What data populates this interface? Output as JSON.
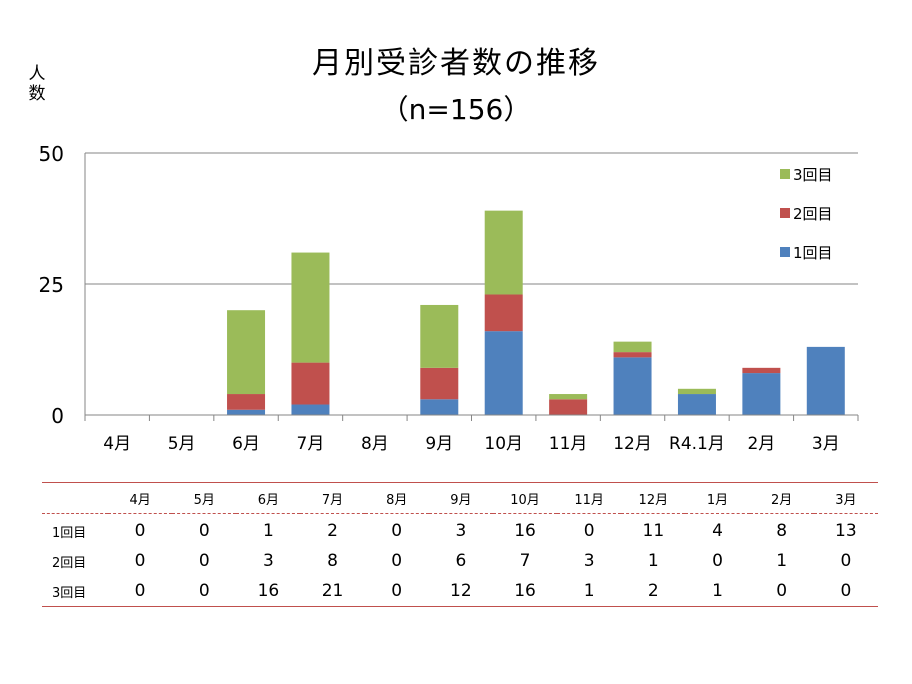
{
  "chart_data": {
    "type": "bar",
    "stacked": true,
    "title": "月別受診者数の推移",
    "subtitle": "（n=156）",
    "ylabel": "人数",
    "xlabel": "",
    "ylim": [
      0,
      50
    ],
    "yticks": [
      0,
      25,
      50
    ],
    "grid": true,
    "legend_position": "top-right",
    "categories": [
      "4月",
      "5月",
      "6月",
      "7月",
      "8月",
      "9月",
      "10月",
      "11月",
      "12月",
      "R4.1月",
      "2月",
      "3月"
    ],
    "series": [
      {
        "name": "1回目",
        "color": "#4f81bd",
        "values": [
          0,
          0,
          1,
          2,
          0,
          3,
          16,
          0,
          11,
          4,
          8,
          13
        ]
      },
      {
        "name": "2回目",
        "color": "#c0504d",
        "values": [
          0,
          0,
          3,
          8,
          0,
          6,
          7,
          3,
          1,
          0,
          1,
          0
        ]
      },
      {
        "name": "3回目",
        "color": "#9bbb59",
        "values": [
          0,
          0,
          16,
          21,
          0,
          12,
          16,
          1,
          2,
          1,
          0,
          0
        ]
      }
    ]
  },
  "table": {
    "header": [
      "",
      "4月",
      "5月",
      "6月",
      "7月",
      "8月",
      "9月",
      "10月",
      "11月",
      "12月",
      "1月",
      "2月",
      "3月"
    ],
    "rows": [
      {
        "label": "1回目",
        "values": [
          0,
          0,
          1,
          2,
          0,
          3,
          16,
          0,
          11,
          4,
          8,
          13
        ]
      },
      {
        "label": "2回目",
        "values": [
          0,
          0,
          3,
          8,
          0,
          6,
          7,
          3,
          1,
          0,
          1,
          0
        ]
      },
      {
        "label": "3回目",
        "values": [
          0,
          0,
          16,
          21,
          0,
          12,
          16,
          1,
          2,
          1,
          0,
          0
        ]
      }
    ]
  },
  "colors": {
    "axis": "#868686",
    "gridline": "#868686",
    "table_rule": "#c0504d"
  }
}
